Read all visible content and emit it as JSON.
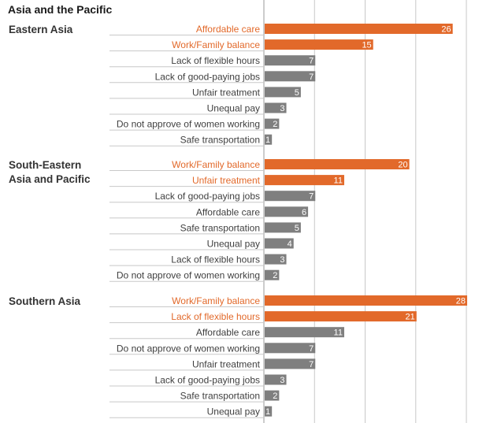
{
  "chart_data": {
    "type": "bar",
    "title": "Asia and the Pacific",
    "orientation": "horizontal",
    "xlim": [
      0,
      30
    ],
    "grid": true,
    "colors": {
      "highlight": "#e2692a",
      "default": "#7f7f7f",
      "highlight_text": "#e2692a",
      "default_text": "#404040"
    },
    "groups": [
      {
        "name": [
          "Eastern Asia"
        ],
        "categories": [
          "Affordable care",
          "Work/Family balance",
          "Lack of flexible hours",
          "Lack of good-paying jobs",
          "Unfair treatment",
          "Unequal pay",
          "Do not approve of women working",
          "Safe transportation"
        ],
        "values": [
          26,
          15,
          7,
          7,
          5,
          3,
          2,
          1
        ],
        "highlighted": [
          true,
          true,
          false,
          false,
          false,
          false,
          false,
          false
        ]
      },
      {
        "name": [
          "South-Eastern",
          "Asia and Pacific"
        ],
        "categories": [
          "Work/Family balance",
          "Unfair treatment",
          "Lack of good-paying jobs",
          "Affordable care",
          "Safe transportation",
          "Unequal pay",
          "Lack of flexible hours",
          "Do not approve of women working"
        ],
        "values": [
          20,
          11,
          7,
          6,
          5,
          4,
          3,
          2
        ],
        "highlighted": [
          true,
          true,
          false,
          false,
          false,
          false,
          false,
          false
        ]
      },
      {
        "name": [
          "Southern Asia"
        ],
        "categories": [
          "Work/Family balance",
          "Lack of flexible hours",
          "Affordable care",
          "Do not approve of women working",
          "Unfair treatment",
          "Lack of good-paying jobs",
          "Safe transportation",
          "Unequal pay"
        ],
        "values": [
          28,
          21,
          11,
          7,
          7,
          3,
          2,
          1
        ],
        "highlighted": [
          true,
          true,
          false,
          false,
          false,
          false,
          false,
          false
        ]
      }
    ]
  }
}
